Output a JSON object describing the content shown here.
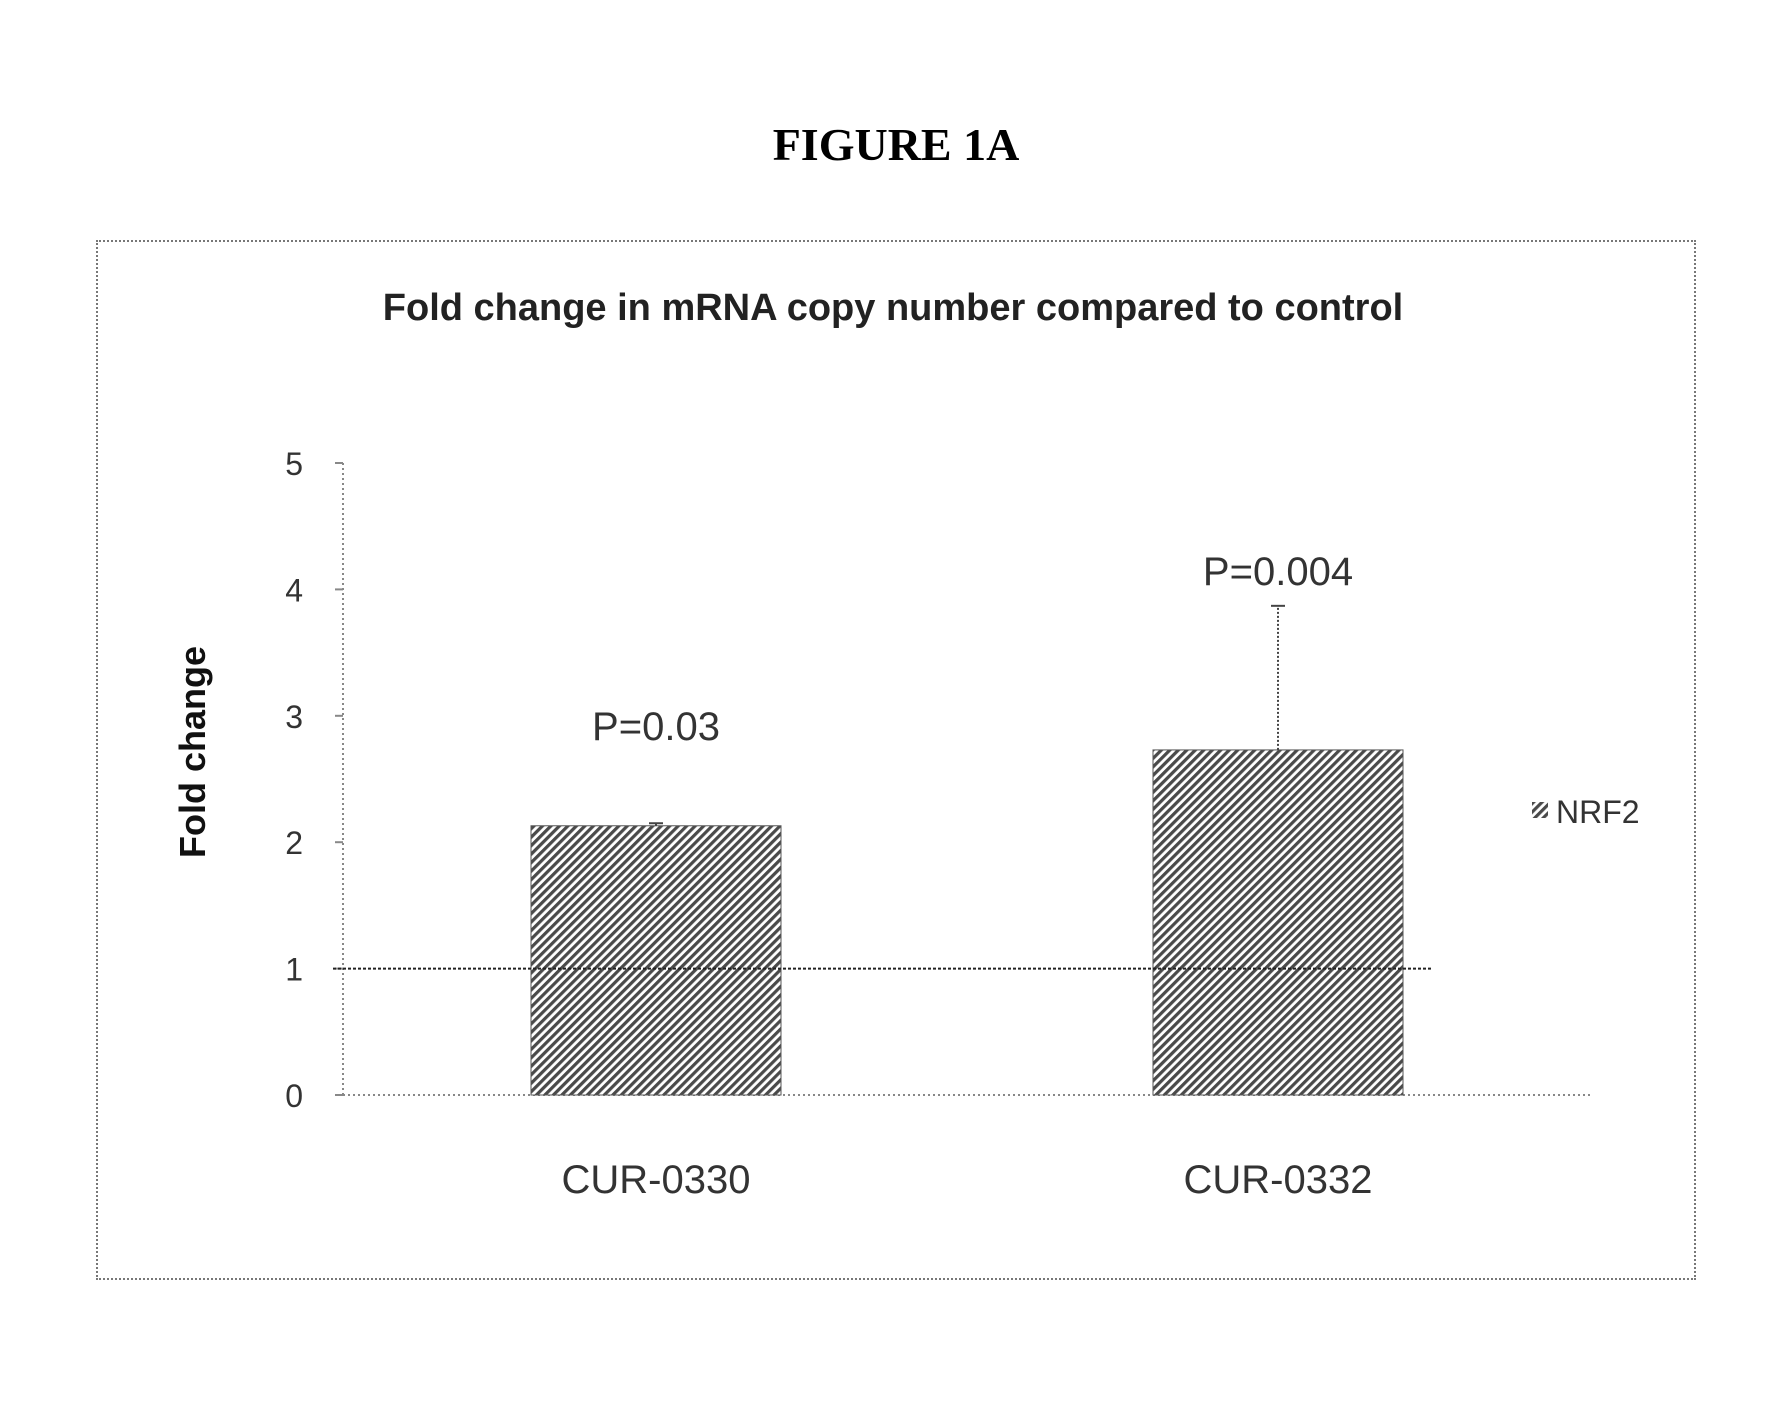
{
  "figure_label": "FIGURE 1A",
  "chart_data": {
    "type": "bar",
    "title": "Fold change in mRNA copy number compared to control",
    "xlabel": "",
    "ylabel": "Fold change",
    "categories": [
      "CUR-0330",
      "CUR-0332"
    ],
    "series": [
      {
        "name": "NRF2",
        "values": [
          2.13,
          2.73
        ],
        "error_upper": [
          2.15,
          3.87
        ],
        "annotations": [
          "P=0.03",
          "P=0.004"
        ]
      }
    ],
    "reference_line": 1,
    "ylim": [
      0,
      5
    ],
    "yticks": [
      "0",
      "1",
      "2",
      "3",
      "4",
      "5"
    ],
    "grid": false,
    "legend_position": "right",
    "bar_fill": "diagonal-hatch",
    "colors": {
      "bar": "#4a4a4a",
      "axis": "#888888",
      "text": "#000000"
    }
  }
}
